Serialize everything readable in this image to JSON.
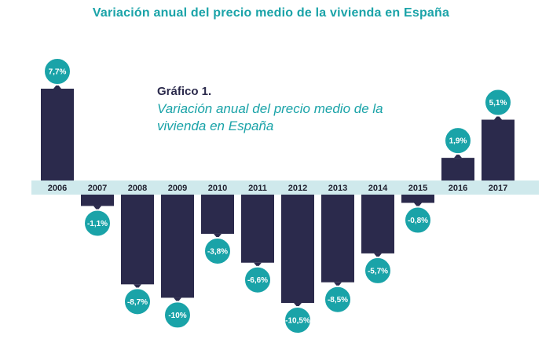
{
  "header": {
    "title": "Variación anual del precio medio de la vivienda en España"
  },
  "caption": {
    "label": "Gráfico 1.",
    "text": "Variación anual del precio medio de la vivienda en España"
  },
  "colors": {
    "bar": "#2b2a4c",
    "band": "#cfe9ec",
    "bubble": "#1aa3a8",
    "title": "#1aa3a8"
  },
  "chart_data": {
    "type": "bar",
    "title": "Variación anual del precio medio de la vivienda en España",
    "categories": [
      "2006",
      "2007",
      "2008",
      "2009",
      "2010",
      "2011",
      "2012",
      "2013",
      "2014",
      "2015",
      "2016",
      "2017"
    ],
    "values": [
      7.7,
      -1.1,
      -8.7,
      -10,
      -3.8,
      -6.6,
      -10.5,
      -8.5,
      -5.7,
      -0.8,
      1.9,
      5.1
    ],
    "value_labels": [
      "7,7%",
      "-1,1%",
      "-8,7%",
      "-10%",
      "-3,8%",
      "-6,6%",
      "-10,5%",
      "-8,5%",
      "-5,7%",
      "-0,8%",
      "1,9%",
      "5,1%"
    ],
    "xlabel": "",
    "ylabel": "",
    "grid": false,
    "legend": "none"
  }
}
